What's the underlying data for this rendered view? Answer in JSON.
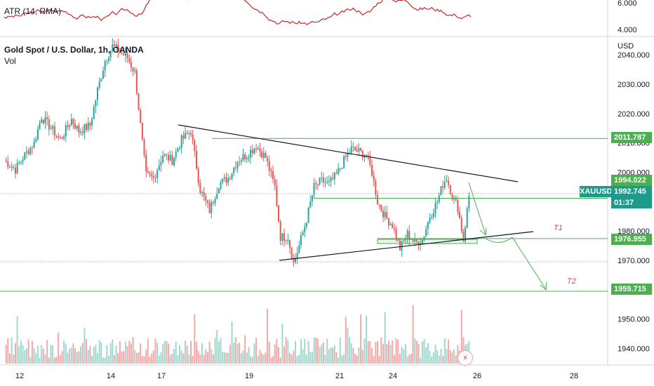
{
  "legend": {
    "atr_label": "ATR (14, RMA)",
    "symbol_label": "Gold Spot / U.S. Dollar, 1h, OANDA",
    "vol_label": "Vol"
  },
  "price_axis": {
    "currency": "USD",
    "ticks": [
      "2040.000",
      "2030.000",
      "2020.000",
      "2010.000",
      "2000.000",
      "1980.000",
      "1970.000",
      "1950.000",
      "1940.000"
    ],
    "atr_ticks": [
      "6.000",
      "4.000"
    ]
  },
  "tags": {
    "res_top": "2011.787",
    "res_mid": "1994.022",
    "symbol": "XAUUSD",
    "price": "1992.745",
    "countdown": "01:37",
    "support": "1976.955",
    "target2": "1959.715"
  },
  "targets": {
    "t1": "T1",
    "t2": "T2"
  },
  "x_axis": {
    "labels": [
      "12",
      "14",
      "17",
      "19",
      "21",
      "24",
      "26",
      "28"
    ]
  },
  "colors": {
    "up": "#26a69a",
    "down": "#ef5350",
    "level": "#4caf50",
    "trend": "#131722",
    "atr": "#c62828",
    "label_green": "#4caf50",
    "symbol_bg": "#1e9a8a",
    "target_text": "#e04646"
  },
  "chart_data": {
    "type": "candlestick",
    "title": "Gold Spot / U.S. Dollar, 1h, OANDA",
    "y_axis_unit": "USD",
    "ylim": [
      1935,
      2045
    ],
    "x_labels": [
      "12",
      "14",
      "17",
      "19",
      "21",
      "24",
      "26",
      "28"
    ],
    "price_anchor_path": [
      [
        0,
        2004
      ],
      [
        6,
        2001
      ],
      [
        10,
        2005
      ],
      [
        16,
        2010
      ],
      [
        20,
        2019
      ],
      [
        25,
        2015
      ],
      [
        30,
        2011
      ],
      [
        36,
        2018
      ],
      [
        40,
        2014
      ],
      [
        46,
        2016
      ],
      [
        50,
        2028
      ],
      [
        54,
        2038
      ],
      [
        58,
        2043
      ],
      [
        62,
        2041
      ],
      [
        66,
        2039
      ],
      [
        70,
        2034
      ],
      [
        74,
        2010
      ],
      [
        76,
        1999
      ],
      [
        80,
        1998
      ],
      [
        85,
        2006
      ],
      [
        90,
        2004
      ],
      [
        95,
        2011
      ],
      [
        100,
        2014
      ],
      [
        105,
        1994
      ],
      [
        110,
        1987
      ],
      [
        115,
        1996
      ],
      [
        120,
        1998
      ],
      [
        125,
        2004
      ],
      [
        130,
        2006
      ],
      [
        135,
        2009
      ],
      [
        140,
        2005
      ],
      [
        145,
        1995
      ],
      [
        148,
        1978
      ],
      [
        152,
        1978
      ],
      [
        155,
        1969
      ],
      [
        158,
        1975
      ],
      [
        162,
        1984
      ],
      [
        166,
        1995
      ],
      [
        170,
        1997
      ],
      [
        174,
        1996
      ],
      [
        178,
        1999
      ],
      [
        182,
        2004
      ],
      [
        186,
        2008
      ],
      [
        190,
        2007
      ],
      [
        194,
        2006
      ],
      [
        197,
        2000
      ],
      [
        200,
        1990
      ],
      [
        204,
        1985
      ],
      [
        208,
        1982
      ],
      [
        212,
        1974
      ],
      [
        216,
        1979
      ],
      [
        220,
        1976
      ],
      [
        224,
        1977
      ],
      [
        228,
        1985
      ],
      [
        232,
        1990
      ],
      [
        235,
        1996
      ],
      [
        237,
        1998
      ],
      [
        240,
        1992
      ],
      [
        243,
        1988
      ],
      [
        246,
        1977
      ],
      [
        249,
        1992
      ]
    ],
    "levels": [
      2011.787,
      1994.022,
      1976.955,
      1970.0,
      1959.715
    ],
    "current_price": 1992.745,
    "countdown": "01:37",
    "annotations": [
      {
        "text": "T1",
        "price": 1980
      },
      {
        "text": "T2",
        "price": 1962
      }
    ],
    "atr": {
      "name": "ATR (14, RMA)",
      "ticks": [
        4.0,
        6.0
      ]
    }
  }
}
